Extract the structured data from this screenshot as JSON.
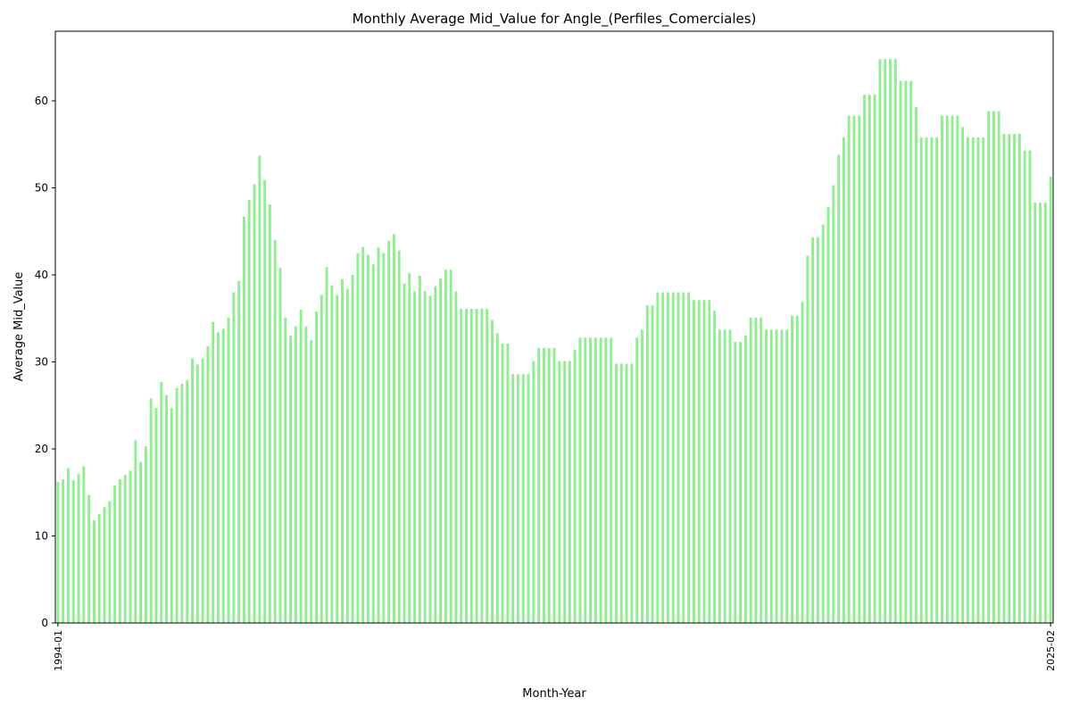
{
  "chart_data": {
    "type": "bar",
    "title": "Monthly Average Mid_Value for Angle_(Perfiles_Comerciales)",
    "xlabel": "Month-Year",
    "ylabel": "Average Mid_Value",
    "ylim": [
      0,
      68
    ],
    "yticks": [
      0,
      10,
      20,
      30,
      40,
      50,
      60
    ],
    "grid": false,
    "legend": "none",
    "bar_color": "#90ee90",
    "first_label": "1994-01",
    "last_label": "2025-02",
    "values": [
      16.2,
      16.5,
      17.8,
      16.4,
      17.1,
      18.0,
      14.7,
      11.8,
      12.5,
      13.3,
      14.0,
      15.8,
      16.5,
      17.0,
      17.5,
      21.0,
      18.5,
      20.3,
      25.8,
      24.7,
      27.7,
      26.2,
      24.7,
      27.0,
      27.5,
      27.9,
      30.4,
      29.7,
      30.4,
      31.8,
      34.6,
      33.4,
      33.8,
      35.1,
      38.0,
      39.3,
      46.7,
      48.6,
      50.4,
      53.7,
      50.9,
      48.1,
      44.0,
      40.8,
      35.1,
      33.0,
      34.1,
      36.0,
      34.1,
      32.5,
      35.8,
      37.7,
      40.9,
      38.8,
      37.7,
      39.5,
      38.4,
      40.0,
      42.5,
      43.2,
      42.3,
      41.2,
      43.2,
      42.5,
      43.9,
      44.7,
      42.8,
      39.0,
      40.2,
      38.1,
      39.9,
      38.1,
      37.6,
      38.7,
      39.6,
      40.6,
      40.6,
      38.1,
      36.1,
      36.1,
      36.1,
      36.1,
      36.1,
      36.1,
      34.8,
      33.3,
      32.1,
      32.1,
      28.6,
      28.6,
      28.6,
      28.6,
      30.1,
      31.6,
      31.6,
      31.6,
      31.6,
      30.1,
      30.1,
      30.1,
      31.4,
      32.8,
      32.8,
      32.8,
      32.8,
      32.8,
      32.8,
      32.8,
      29.8,
      29.8,
      29.8,
      29.8,
      32.8,
      33.7,
      36.5,
      36.5,
      38.0,
      38.0,
      38.0,
      38.0,
      38.0,
      38.0,
      38.0,
      37.1,
      37.1,
      37.1,
      37.1,
      35.9,
      33.7,
      33.7,
      33.7,
      32.3,
      32.3,
      33.0,
      35.1,
      35.1,
      35.1,
      33.7,
      33.7,
      33.7,
      33.7,
      33.7,
      35.3,
      35.3,
      36.9,
      42.2,
      44.3,
      44.3,
      45.8,
      47.8,
      50.3,
      53.8,
      55.8,
      58.3,
      58.3,
      58.3,
      60.7,
      60.7,
      60.7,
      64.8,
      64.8,
      64.8,
      64.8,
      62.3,
      62.3,
      62.3,
      59.3,
      55.8,
      55.8,
      55.8,
      55.8,
      58.3,
      58.3,
      58.3,
      58.3,
      57.0,
      55.8,
      55.8,
      55.8,
      55.8,
      58.8,
      58.8,
      58.8,
      56.2,
      56.2,
      56.2,
      56.2,
      54.3,
      54.3,
      48.3,
      48.3,
      48.3,
      51.3
    ]
  }
}
